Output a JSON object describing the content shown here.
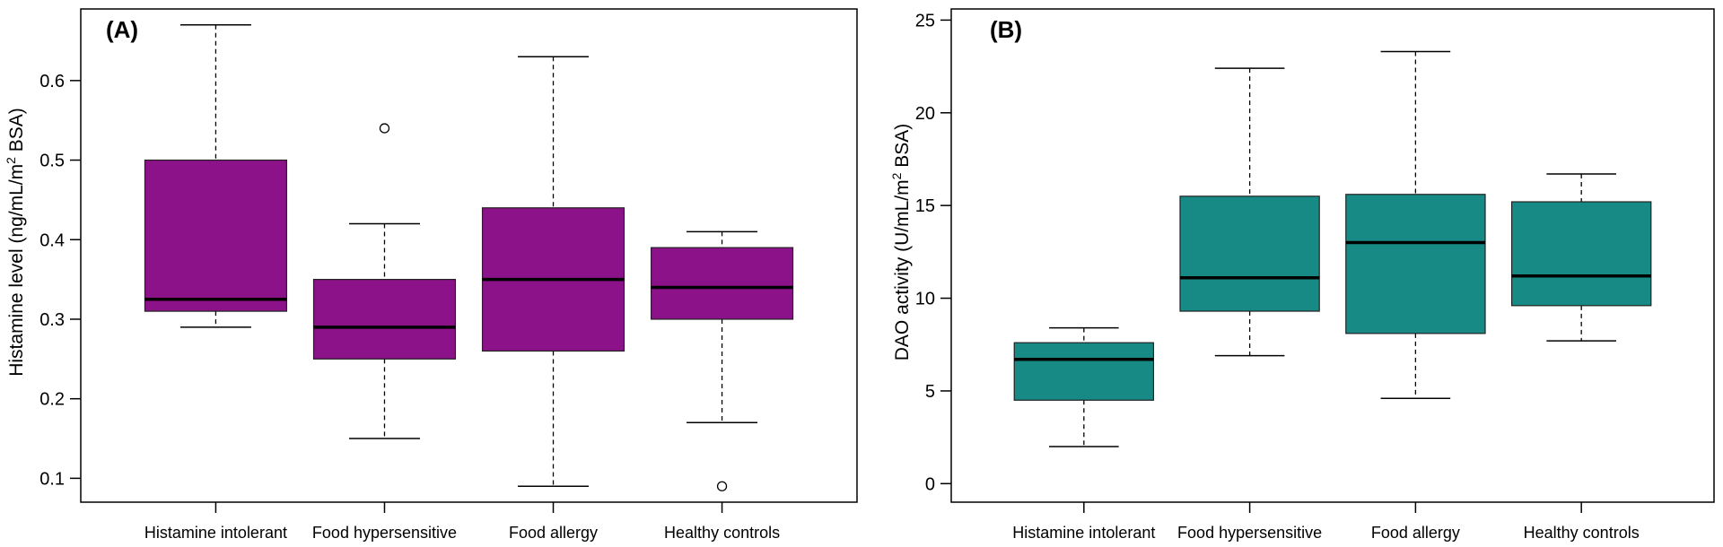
{
  "chart_data": [
    {
      "type": "box",
      "panel_label": "(A)",
      "ylabel": "Histamine level (ng/mL/m² BSA)",
      "ylabel_parts": [
        "Histamine level (ng/mL/m",
        "2",
        " BSA)"
      ],
      "ylim": [
        0.07,
        0.69
      ],
      "yticks": [
        0.1,
        0.2,
        0.3,
        0.4,
        0.5,
        0.6
      ],
      "ytick_labels": [
        "0.1",
        "0.2",
        "0.3",
        "0.4",
        "0.5",
        "0.6"
      ],
      "box_color": "#8B1289",
      "categories": [
        "Histamine intolerant",
        "Food hypersensitive",
        "Food allergy",
        "Healthy controls"
      ],
      "boxes": [
        {
          "whisker_low": 0.29,
          "q1": 0.31,
          "median": 0.325,
          "q3": 0.5,
          "whisker_high": 0.67,
          "outliers": []
        },
        {
          "whisker_low": 0.15,
          "q1": 0.25,
          "median": 0.29,
          "q3": 0.35,
          "whisker_high": 0.42,
          "outliers": [
            0.54
          ]
        },
        {
          "whisker_low": 0.09,
          "q1": 0.26,
          "median": 0.35,
          "q3": 0.44,
          "whisker_high": 0.63,
          "outliers": []
        },
        {
          "whisker_low": 0.17,
          "q1": 0.3,
          "median": 0.34,
          "q3": 0.39,
          "whisker_high": 0.41,
          "outliers": [
            0.09
          ]
        }
      ]
    },
    {
      "type": "box",
      "panel_label": "(B)",
      "ylabel": "DAO activity (U/mL/m² BSA)",
      "ylabel_parts": [
        "DAO activity (U/mL/m",
        "2",
        " BSA)"
      ],
      "ylim": [
        -1,
        25.6
      ],
      "yticks": [
        0,
        5,
        10,
        15,
        20,
        25
      ],
      "ytick_labels": [
        "0",
        "5",
        "10",
        "15",
        "20",
        "25"
      ],
      "box_color": "#178A85",
      "categories": [
        "Histamine intolerant",
        "Food hypersensitive",
        "Food allergy",
        "Healthy controls"
      ],
      "boxes": [
        {
          "whisker_low": 2.0,
          "q1": 4.5,
          "median": 6.7,
          "q3": 7.6,
          "whisker_high": 8.4,
          "outliers": []
        },
        {
          "whisker_low": 6.9,
          "q1": 9.3,
          "median": 11.1,
          "q3": 15.5,
          "whisker_high": 22.4,
          "outliers": []
        },
        {
          "whisker_low": 4.6,
          "q1": 8.1,
          "median": 13.0,
          "q3": 15.6,
          "whisker_high": 23.3,
          "outliers": []
        },
        {
          "whisker_low": 7.7,
          "q1": 9.6,
          "median": 11.2,
          "q3": 15.2,
          "whisker_high": 16.7,
          "outliers": []
        }
      ]
    }
  ]
}
